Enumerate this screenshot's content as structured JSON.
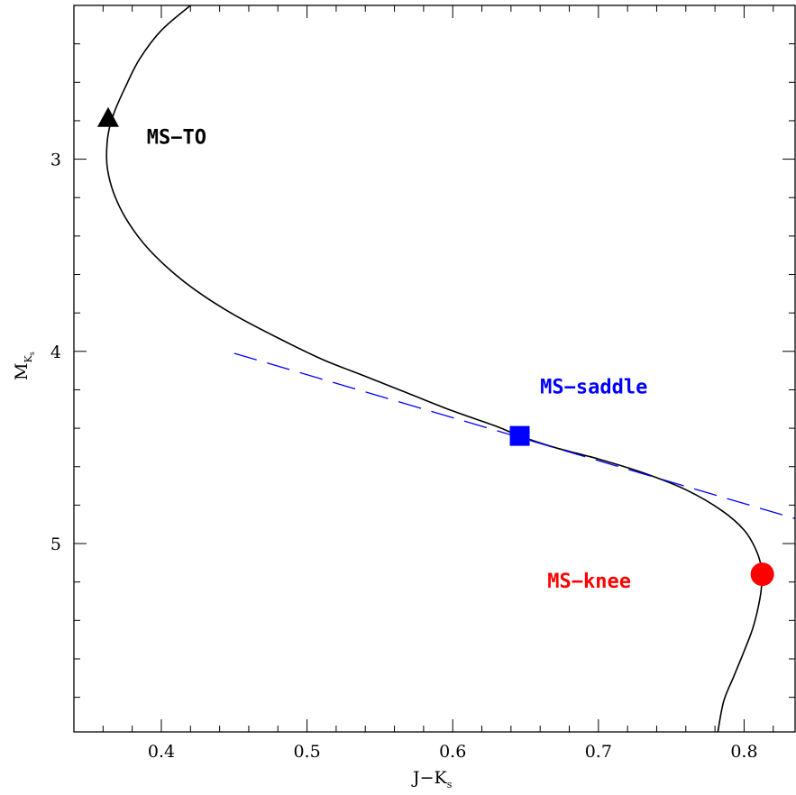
{
  "chart_data": {
    "type": "line",
    "xlabel": "J−K",
    "xlabel_sub": "s",
    "ylabel": "M",
    "ylabel_sub": "K",
    "ylabel_subsub": "s",
    "xlim": [
      0.34,
      0.835
    ],
    "ylim": [
      5.98,
      2.2
    ],
    "y_inverted": true,
    "x_major_ticks": [
      0.4,
      0.5,
      0.6,
      0.7,
      0.8
    ],
    "x_tick_labels": [
      "0.4",
      "0.5",
      "0.6",
      "0.7",
      "0.8"
    ],
    "x_minor_step": 0.02,
    "y_major_ticks": [
      3,
      4,
      5
    ],
    "y_tick_labels": [
      "3",
      "4",
      "5"
    ],
    "y_minor_step": 0.2,
    "grid": false,
    "series": [
      {
        "style": "solid",
        "color": "#000000",
        "x": [
          0.42,
          0.4,
          0.385,
          0.375,
          0.368,
          0.364,
          0.3625,
          0.363,
          0.367,
          0.375,
          0.388,
          0.405,
          0.425,
          0.45,
          0.48,
          0.51,
          0.54,
          0.57,
          0.6,
          0.63,
          0.646,
          0.67,
          0.7,
          0.73,
          0.76,
          0.785,
          0.8,
          0.808,
          0.812,
          0.812,
          0.81,
          0.806,
          0.8,
          0.793,
          0.786,
          0.782
        ],
        "y": [
          2.2,
          2.33,
          2.48,
          2.63,
          2.75,
          2.85,
          2.95,
          3.05,
          3.17,
          3.3,
          3.44,
          3.57,
          3.69,
          3.81,
          3.93,
          4.04,
          4.13,
          4.22,
          4.31,
          4.39,
          4.44,
          4.5,
          4.56,
          4.63,
          4.72,
          4.83,
          4.93,
          5.03,
          5.13,
          5.22,
          5.32,
          5.44,
          5.56,
          5.69,
          5.82,
          5.98
        ]
      },
      {
        "style": "dashed",
        "color": "#0000ff",
        "x": [
          0.45,
          0.835
        ],
        "y": [
          4.01,
          4.87
        ]
      }
    ],
    "markers": [
      {
        "name": "triangle",
        "shape": "triangle",
        "color": "#000000",
        "x": 0.3635,
        "y": 2.79
      },
      {
        "name": "square",
        "shape": "square",
        "color": "#0000ff",
        "x": 0.646,
        "y": 4.44
      },
      {
        "name": "circle",
        "shape": "circle",
        "color": "#ff0000",
        "x": 0.8125,
        "y": 5.16
      }
    ],
    "annotations": [
      {
        "name": "ms-to",
        "text": "MS−TO",
        "color": "#000000",
        "x": 0.39,
        "y": 2.92
      },
      {
        "name": "ms-saddle",
        "text": "MS−saddle",
        "color": "#0000ff",
        "x": 0.66,
        "y": 4.22
      },
      {
        "name": "ms-knee",
        "text": "MS−knee",
        "color": "#ff0000",
        "x": 0.665,
        "y": 5.23
      }
    ]
  }
}
